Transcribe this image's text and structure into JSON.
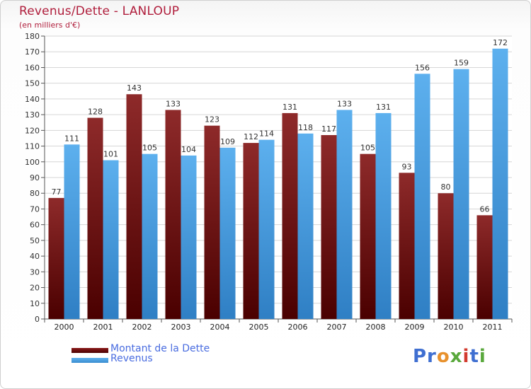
{
  "chart_data": {
    "type": "bar",
    "title": "Revenus/Dette - LANLOUP",
    "subtitle": "(en milliers d'€)",
    "categories": [
      "2000",
      "2001",
      "2002",
      "2003",
      "2004",
      "2005",
      "2006",
      "2007",
      "2008",
      "2009",
      "2010",
      "2011"
    ],
    "series": [
      {
        "name": "Montant de la Dette",
        "color": "#8b1a1a",
        "values": [
          77,
          128,
          143,
          133,
          123,
          112,
          131,
          117,
          105,
          93,
          80,
          66
        ]
      },
      {
        "name": "Revenus",
        "color": "#4ea3e6",
        "values": [
          111,
          101,
          105,
          104,
          109,
          114,
          118,
          133,
          131,
          156,
          159,
          172
        ]
      }
    ],
    "ylim": [
      0,
      180
    ],
    "yticks": [
      0,
      10,
      20,
      30,
      40,
      50,
      60,
      70,
      80,
      90,
      100,
      110,
      120,
      130,
      140,
      150,
      160,
      170,
      180
    ],
    "grid": true,
    "legend_position": "bottom-left"
  },
  "logo_text": "Proxiti"
}
